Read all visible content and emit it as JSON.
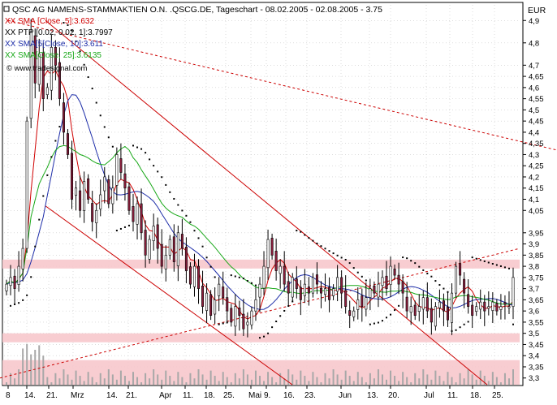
{
  "header": {
    "title": "QSC AG NAMENS-STAMMAKTIEN O.N. .QSCG.DE, Tageschart - 08.02.2005 - 02.08.2005 - 3.75",
    "legend": [
      {
        "text": "XX SMA [Close, 5]:3.632",
        "color": "#d00000"
      },
      {
        "text": "XX PTP [0.02, 0.02, 1]:3.7997",
        "color": "#000000"
      },
      {
        "text": "XX SMA[5[Close, 10]:3.611",
        "color": "#1c2ca8"
      },
      {
        "text": "XX SMA[Close, 25]:3.6135",
        "color": "#18a818"
      }
    ],
    "watermark": "© www.tradesignal.com"
  },
  "chart_data": {
    "type": "candlestick",
    "y_unit": "EUR",
    "ylim": [
      3.27,
      4.97
    ],
    "y_ticks": [
      3.3,
      3.35,
      3.4,
      3.45,
      3.5,
      3.55,
      3.6,
      3.65,
      3.7,
      3.75,
      3.8,
      3.85,
      3.9,
      3.95,
      4.05,
      4.1,
      4.15,
      4.2,
      4.25,
      4.3,
      4.35,
      4.4,
      4.45,
      4.5,
      4.55,
      4.6,
      4.65,
      4.7,
      4.8,
      4.9
    ],
    "x_tick_labels": [
      "8",
      "14.",
      "21.",
      "Mrz",
      "14.",
      "21.",
      "Apr",
      "11.",
      "18.",
      "25.",
      "Mai",
      "9.",
      "16.",
      "23.",
      "Jun",
      "13.",
      "20.",
      "Jul",
      "11.",
      "18.",
      "25."
    ],
    "start_date": "2005-02-08",
    "end_date": "2005-08-02",
    "last_close": 3.75,
    "closes": [
      3.72,
      3.75,
      3.7,
      3.8,
      3.88,
      4.45,
      4.85,
      4.62,
      4.75,
      4.55,
      4.6,
      4.78,
      4.7,
      4.55,
      4.4,
      4.3,
      4.1,
      4.15,
      4.05,
      4.18,
      4.1,
      4.0,
      4.05,
      4.12,
      4.2,
      4.08,
      4.15,
      4.3,
      4.22,
      4.15,
      4.05,
      4.0,
      4.08,
      3.95,
      3.85,
      3.92,
      3.98,
      3.88,
      3.8,
      3.85,
      3.92,
      3.82,
      3.95,
      3.88,
      3.78,
      3.72,
      3.8,
      3.7,
      3.62,
      3.68,
      3.58,
      3.65,
      3.72,
      3.66,
      3.6,
      3.55,
      3.62,
      3.58,
      3.52,
      3.55,
      3.6,
      3.65,
      3.72,
      3.8,
      3.92,
      3.85,
      3.78,
      3.8,
      3.72,
      3.68,
      3.75,
      3.7,
      3.65,
      3.72,
      3.68,
      3.75,
      3.72,
      3.68,
      3.7,
      3.65,
      3.7,
      3.75,
      3.68,
      3.62,
      3.58,
      3.6,
      3.65,
      3.62,
      3.66,
      3.7,
      3.68,
      3.72,
      3.75,
      3.7,
      3.8,
      3.76,
      3.72,
      3.68,
      3.6,
      3.62,
      3.58,
      3.62,
      3.66,
      3.6,
      3.55,
      3.62,
      3.64,
      3.6,
      3.56,
      3.68,
      3.8,
      3.76,
      3.68,
      3.62,
      3.58,
      3.62,
      3.64,
      3.6,
      3.62,
      3.64,
      3.6,
      3.62,
      3.63,
      3.62,
      3.75
    ],
    "sma5_last": 3.632,
    "ptp_last": 3.7997,
    "sma10_last": 3.611,
    "sma25_last": 3.6135,
    "trend_lines": [
      {
        "name": "downtrend-channel-upper",
        "color": "#cc0000",
        "from": {
          "x": 56,
          "y": 4.9
        },
        "to": {
          "x": 600,
          "y": 3.27
        }
      },
      {
        "name": "downtrend-channel-lower",
        "color": "#cc0000",
        "from": {
          "x": 56,
          "y": 4.07
        },
        "to": {
          "x": 360,
          "y": 3.27
        }
      },
      {
        "name": "long-term-resistance",
        "color": "#cc0000",
        "from": {
          "x": 10,
          "y": 4.9
        },
        "to": {
          "x": 686,
          "y": 4.32
        }
      },
      {
        "name": "support-uptrend",
        "color": "#cc0000",
        "from": {
          "x": 0,
          "y": 3.3
        },
        "to": {
          "x": 640,
          "y": 3.88
        }
      }
    ],
    "zones": [
      {
        "name": "resistance-zone",
        "y_low": 3.79,
        "y_high": 3.83
      },
      {
        "name": "support-zone",
        "y_low": 3.46,
        "y_high": 3.5
      },
      {
        "name": "volume-zone",
        "y_low": 3.27,
        "y_high": 3.38
      }
    ]
  }
}
